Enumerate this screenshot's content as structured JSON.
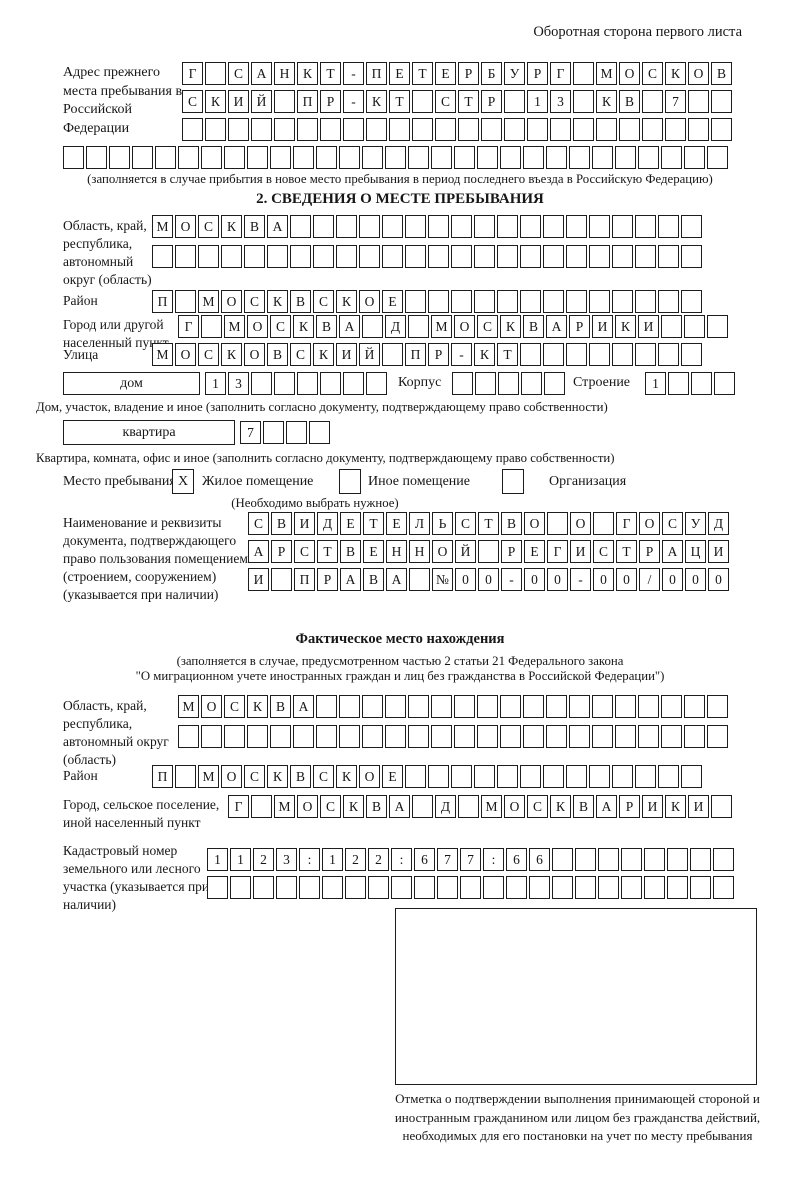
{
  "page_title": "Оборотная сторона первого листа",
  "prev_address": {
    "label": "Адрес прежнего места пребывания в Российской Федерации",
    "row1": {
      "text": "Г САНКТ-ПЕТЕРБУРГ МОСКОВ",
      "len": 24
    },
    "row2": {
      "text": "СКИЙ ПР-КТ СТР 13 КВ 7",
      "len": 24
    },
    "row3": {
      "text": "",
      "len": 24
    },
    "row4": {
      "text": "",
      "len": 29
    },
    "note": "(заполняется в случае прибытия в новое место пребывания в период последнего въезда в Российскую Федерацию)"
  },
  "section2": {
    "title": "2. СВЕДЕНИЯ О МЕСТЕ ПРЕБЫВАНИЯ",
    "region_label": "Область, край, республика, автономный округ (область)",
    "region_row1": {
      "text": "МОСКВА",
      "len": 24
    },
    "region_row2": {
      "text": "",
      "len": 24
    },
    "district_label": "Район",
    "district_row": {
      "text": "П МОСКВСКОЕ",
      "len": 24
    },
    "city_label": "Город или другой населенный пункт",
    "city_row": {
      "text": "Г МОСКВА Д МОСКВАРИКИ",
      "len": 24
    },
    "street_label": "Улица",
    "street_row": {
      "text": "МОСКОВСКИЙ ПР-КТ",
      "len": 24
    },
    "house_box_label": "дом",
    "house_row": {
      "text": "13",
      "len": 8
    },
    "korpus_label": "Корпус",
    "korpus_row": {
      "text": "",
      "len": 5
    },
    "stroenie_label": "Строение",
    "stroenie_row": {
      "text": "1",
      "len": 4
    },
    "house_note": "Дом, участок, владение и иное (заполнить согласно документу, подтверждающему право собственности)",
    "apartment_box_label": "квартира",
    "apartment_row": {
      "text": "7",
      "len": 4
    },
    "apartment_note": "Квартира, комната, офис и иное (заполнить согласно документу, подтверждающему право собственности)",
    "stay_label": "Место пребывания:",
    "stay_options": [
      {
        "mark": "X",
        "label": "Жилое помещение"
      },
      {
        "mark": "",
        "label": "Иное помещение"
      },
      {
        "mark": "",
        "label": "Организация"
      }
    ],
    "stay_note": "(Необходимо выбрать нужное)",
    "document_label": "Наименование и реквизиты документа, подтверждающего право пользования помещением (строением, сооружением) (указывается при наличии)",
    "document_row1": {
      "text": "СВИДЕТЕЛЬСТВО О ГОСУД",
      "len": 21
    },
    "document_row2": {
      "text": "АРСТВЕННОЙ РЕГИСТРАЦИ",
      "len": 21
    },
    "document_row3": {
      "text": "И ПРАВА №00-00-00/000",
      "len": 21
    }
  },
  "actual_location": {
    "title": "Фактическое место нахождения",
    "note1": "(заполняется в случае, предусмотренном частью 2 статьи 21 Федерального закона",
    "note2": "\"О миграционном учете иностранных граждан и лиц без гражданства в Российской Федерации\")",
    "region_label": "Область, край, республика, автономный округ (область)",
    "region_row1": {
      "text": "МОСКВА",
      "len": 24
    },
    "region_row2": {
      "text": "",
      "len": 24
    },
    "district_label": "Район",
    "district_row": {
      "text": "П МОСКВСКОЕ",
      "len": 24
    },
    "city_label": "Город, сельское поселение, иной населенный пункт",
    "city_row": {
      "text": "Г МОСКВА Д МОСКВАРИКИ",
      "len": 22
    },
    "cadastral_label": "Кадастровый номер земельного или лесного участка (указывается при наличии)",
    "cadastral_row1": {
      "text": "1123:122:677:66",
      "len": 23
    },
    "cadastral_row2": {
      "text": "",
      "len": 23
    },
    "stamp_note": "Отметка о подтверждении выполнения принимающей стороной и иностранным гражданином или лицом без гражданства действий, необходимых для его постановки на учет по месту пребывания"
  }
}
